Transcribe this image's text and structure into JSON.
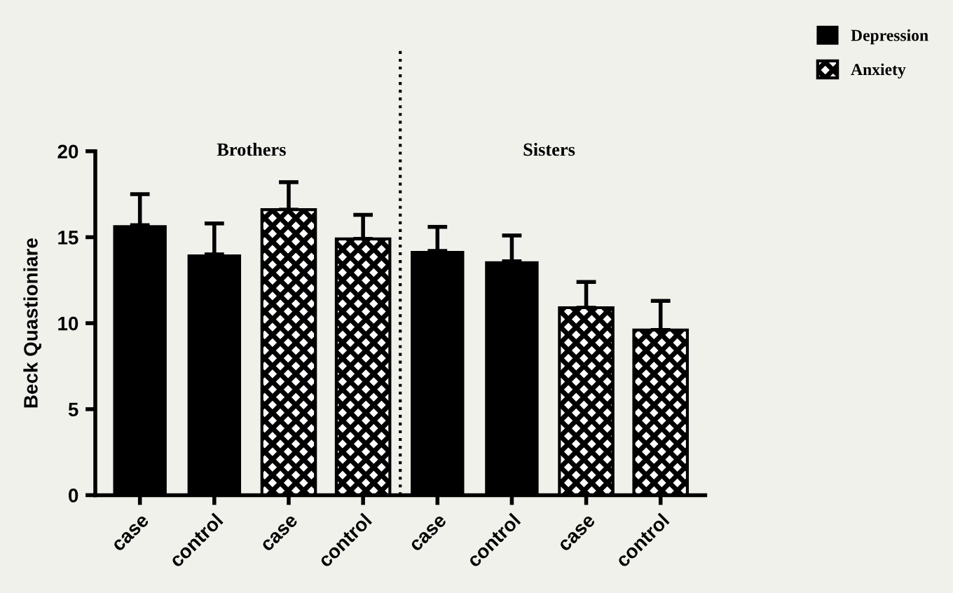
{
  "chart_data": {
    "type": "bar",
    "ylabel": "Beck Quastioniare",
    "categories": [
      "case",
      "control",
      "case",
      "control",
      "case",
      "control",
      "case",
      "control"
    ],
    "series": [
      {
        "name": "Depression",
        "color": "#000000",
        "values": [
          15.7,
          14.0,
          null,
          null,
          14.2,
          13.6,
          null,
          null
        ],
        "errors": [
          1.8,
          1.8,
          null,
          null,
          1.4,
          1.5,
          null,
          null
        ]
      },
      {
        "name": "Anxiety",
        "color": "#000000",
        "values": [
          null,
          null,
          16.6,
          14.9,
          null,
          null,
          10.9,
          9.6
        ],
        "errors": [
          null,
          null,
          1.6,
          1.4,
          null,
          null,
          1.5,
          1.7
        ]
      }
    ],
    "annotations": [
      "Brothers",
      "Sisters"
    ],
    "ylim": [
      0,
      20
    ],
    "yticks": [
      0,
      5,
      10,
      15,
      20
    ],
    "grid": false,
    "legend": "top right"
  }
}
